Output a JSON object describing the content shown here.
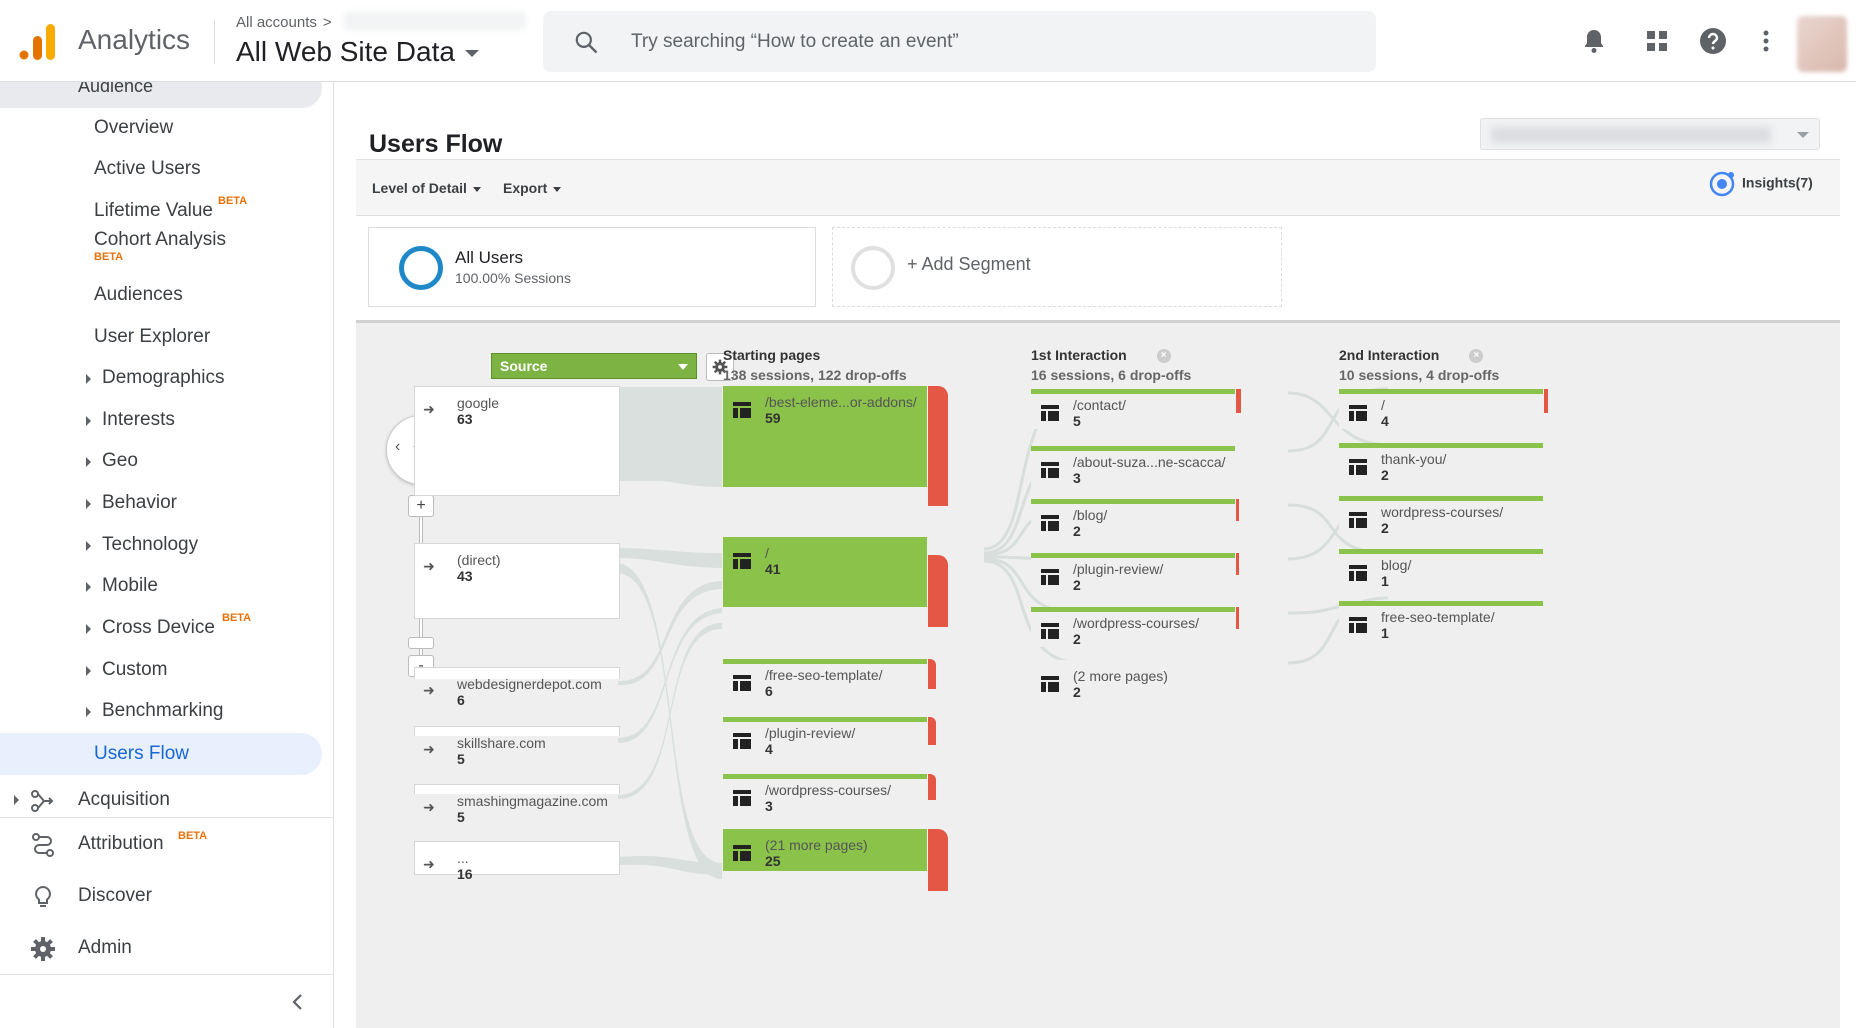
{
  "app": {
    "brand": "Analytics",
    "breadcrumb_all": "All accounts",
    "breadcrumb_chev": ">",
    "property": "All Web Site Data",
    "search_placeholder": "Try searching “How to create an event”"
  },
  "colors": {
    "accent": "#1967d2",
    "flow_green": "#8bc34a",
    "dropoff_red": "#e45745",
    "beta": "#e8710a"
  },
  "sidebar": {
    "section_title": "Audience",
    "items": [
      {
        "label": "Overview"
      },
      {
        "label": "Active Users"
      },
      {
        "label": "Lifetime Value",
        "beta": "BETA"
      },
      {
        "label": "Cohort Analysis",
        "beta": "BETA"
      },
      {
        "label": "Audiences"
      },
      {
        "label": "User Explorer"
      },
      {
        "label": "Demographics"
      },
      {
        "label": "Interests"
      },
      {
        "label": "Geo"
      },
      {
        "label": "Behavior"
      },
      {
        "label": "Technology"
      },
      {
        "label": "Mobile"
      },
      {
        "label": "Cross Device",
        "beta": "BETA"
      },
      {
        "label": "Custom"
      },
      {
        "label": "Benchmarking"
      },
      {
        "label": "Users Flow",
        "active": true
      }
    ],
    "sections": [
      {
        "label": "Acquisition",
        "icon": "acquisition-icon"
      },
      {
        "label": "Attribution",
        "beta": "BETA",
        "icon": "attribution-icon"
      },
      {
        "label": "Discover",
        "icon": "lightbulb-icon"
      },
      {
        "label": "Admin",
        "icon": "gear-icon"
      }
    ]
  },
  "report": {
    "title": "Users Flow",
    "level_of_detail": "Level of Detail",
    "export": "Export",
    "insights": "Insights(7)",
    "segment_name": "All Users",
    "segment_share": "100.00% Sessions",
    "add_segment": "+ Add Segment"
  },
  "flow": {
    "dimension": "Source",
    "columns": {
      "starting": {
        "title": "Starting pages",
        "summary": "138 sessions, 122 drop-offs"
      },
      "first": {
        "title": "1st Interaction",
        "summary": "16 sessions, 6 drop-offs"
      },
      "second": {
        "title": "2nd Interaction",
        "summary": "10 sessions, 4 drop-offs"
      }
    },
    "sources": [
      {
        "name": "google",
        "value": "63"
      },
      {
        "name": "(direct)",
        "value": "43"
      },
      {
        "name": "webdesignerdepot.com",
        "value": "6"
      },
      {
        "name": "skillshare.com",
        "value": "5"
      },
      {
        "name": "smashingmagazine.com",
        "value": "5"
      },
      {
        "name": "...",
        "value": "16"
      }
    ],
    "starting_pages": [
      {
        "name": "/best-eleme...or-addons/",
        "value": "59"
      },
      {
        "name": "/",
        "value": "41"
      },
      {
        "name": "/free-seo-template/",
        "value": "6"
      },
      {
        "name": "/plugin-review/",
        "value": "4"
      },
      {
        "name": "/wordpress-courses/",
        "value": "3"
      },
      {
        "name": "(21 more pages)",
        "value": "25"
      }
    ],
    "first_interaction": [
      {
        "name": "/contact/",
        "value": "5"
      },
      {
        "name": "/about-suza...ne-scacca/",
        "value": "3"
      },
      {
        "name": "/blog/",
        "value": "2"
      },
      {
        "name": "/plugin-review/",
        "value": "2"
      },
      {
        "name": "/wordpress-courses/",
        "value": "2"
      },
      {
        "name": "(2 more pages)",
        "value": "2"
      }
    ],
    "second_interaction": [
      {
        "name": "/",
        "value": "4"
      },
      {
        "name": "thank-you/",
        "value": "2"
      },
      {
        "name": "wordpress-courses/",
        "value": "2"
      },
      {
        "name": "blog/",
        "value": "1"
      },
      {
        "name": "free-seo-template/",
        "value": "1"
      }
    ]
  }
}
